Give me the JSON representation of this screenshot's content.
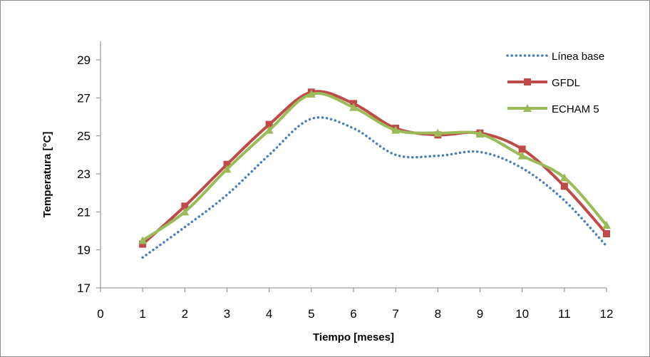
{
  "chart_data": {
    "type": "line",
    "title": "",
    "xlabel": "Tiempo [meses]",
    "ylabel": "Temperatura [°C]",
    "xlim": [
      0,
      12
    ],
    "ylim": [
      17,
      30
    ],
    "x_ticks": [
      0,
      1,
      2,
      3,
      4,
      5,
      6,
      7,
      8,
      9,
      10,
      11,
      12
    ],
    "y_ticks": [
      17,
      19,
      21,
      23,
      25,
      27,
      29
    ],
    "grid": false,
    "legend_position": "top-right",
    "series": [
      {
        "name": "Línea base",
        "color": "#4a7ebb",
        "style": "dotted",
        "marker": "none",
        "x": [
          1,
          2,
          3,
          4,
          5,
          6,
          7,
          8,
          9,
          10,
          11,
          12
        ],
        "y": [
          18.6,
          20.2,
          21.9,
          24.0,
          25.9,
          25.4,
          24.0,
          23.95,
          24.15,
          23.3,
          21.6,
          19.2
        ]
      },
      {
        "name": "GFDL",
        "color": "#be4b48",
        "style": "solid",
        "marker": "square",
        "x": [
          1,
          2,
          3,
          4,
          5,
          6,
          7,
          8,
          9,
          10,
          11,
          12
        ],
        "y": [
          19.3,
          21.3,
          23.5,
          25.6,
          27.3,
          26.7,
          25.4,
          25.05,
          25.15,
          24.3,
          22.35,
          19.85
        ]
      },
      {
        "name": "ECHAM 5",
        "color": "#9bbb59",
        "style": "solid",
        "marker": "triangle",
        "x": [
          1,
          2,
          3,
          4,
          5,
          6,
          7,
          8,
          9,
          10,
          11,
          12
        ],
        "y": [
          19.5,
          21.0,
          23.25,
          25.3,
          27.2,
          26.5,
          25.3,
          25.15,
          25.1,
          23.95,
          22.8,
          20.3
        ]
      }
    ]
  }
}
